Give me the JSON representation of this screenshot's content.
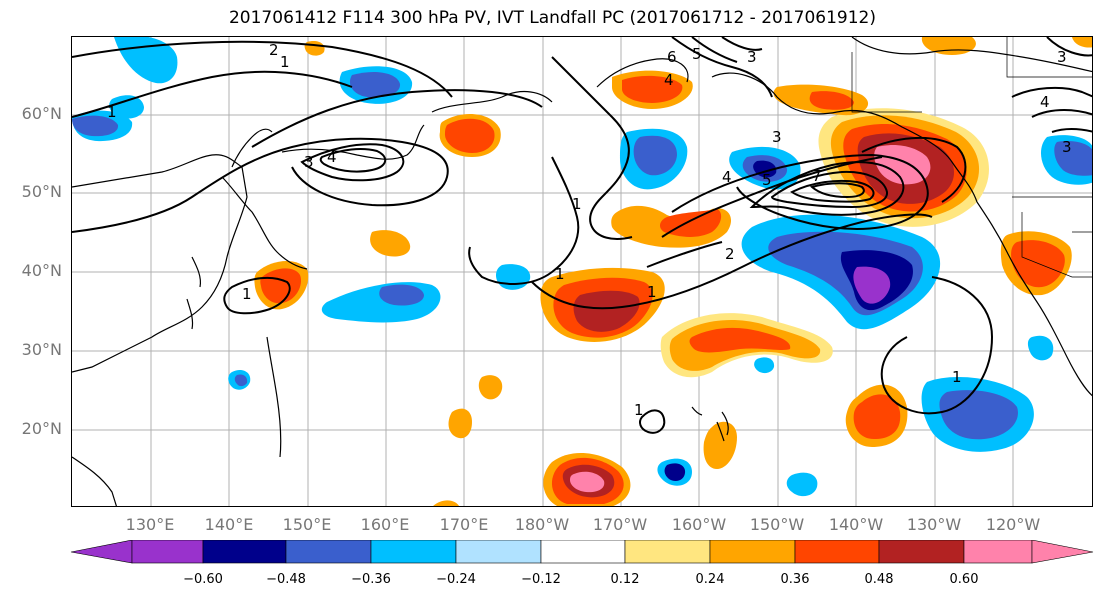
{
  "title": "2017061412 F114 300 hPa PV, IVT Landfall PC (2017061712 - 2017061912)",
  "lat_labels": [
    "60°N",
    "50°N",
    "40°N",
    "30°N",
    "20°N"
  ],
  "lon_labels": [
    "130°E",
    "140°E",
    "150°E",
    "160°E",
    "170°E",
    "180°W",
    "170°W",
    "160°W",
    "150°W",
    "140°W",
    "130°W",
    "120°W"
  ],
  "colorbar": {
    "ticks": [
      "−0.60",
      "−0.48",
      "−0.36",
      "−0.24",
      "−0.12",
      "0.12",
      "0.24",
      "0.36",
      "0.48",
      "0.60"
    ],
    "colors": [
      "#9932cc",
      "#00008b",
      "#3a5fcd",
      "#00bfff",
      "#b0e2ff",
      "#ffffff",
      "#ffe680",
      "#ffa500",
      "#ff4500",
      "#b22222",
      "#ff82ab"
    ]
  },
  "contour_labels": [
    "1",
    "2",
    "3",
    "4",
    "5",
    "6",
    "7"
  ]
}
